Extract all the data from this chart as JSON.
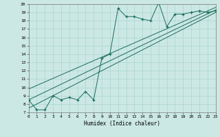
{
  "xlabel": "Humidex (Indice chaleur)",
  "bg_color": "#cce8e4",
  "grid_color": "#aad4cc",
  "line_color": "#1a6b5a",
  "x_min": 0,
  "x_max": 23,
  "y_min": 7,
  "y_max": 20,
  "scatter_x": [
    0,
    1,
    2,
    3,
    4,
    5,
    6,
    7,
    8,
    9,
    10,
    11,
    12,
    13,
    14,
    15,
    16,
    17,
    18,
    19,
    20,
    21,
    22,
    23
  ],
  "scatter_y": [
    8.5,
    7.3,
    7.3,
    9.0,
    8.5,
    8.8,
    8.5,
    9.5,
    8.5,
    13.5,
    14.0,
    19.5,
    18.5,
    18.5,
    18.2,
    18.0,
    20.2,
    17.3,
    18.8,
    18.8,
    19.0,
    19.2,
    19.0,
    19.2
  ],
  "line1_x": [
    0,
    23
  ],
  "line1_y": [
    7.5,
    19.0
  ],
  "line2_x": [
    0,
    23
  ],
  "line2_y": [
    8.5,
    19.3
  ],
  "line3_x": [
    0,
    23
  ],
  "line3_y": [
    9.8,
    19.6
  ]
}
